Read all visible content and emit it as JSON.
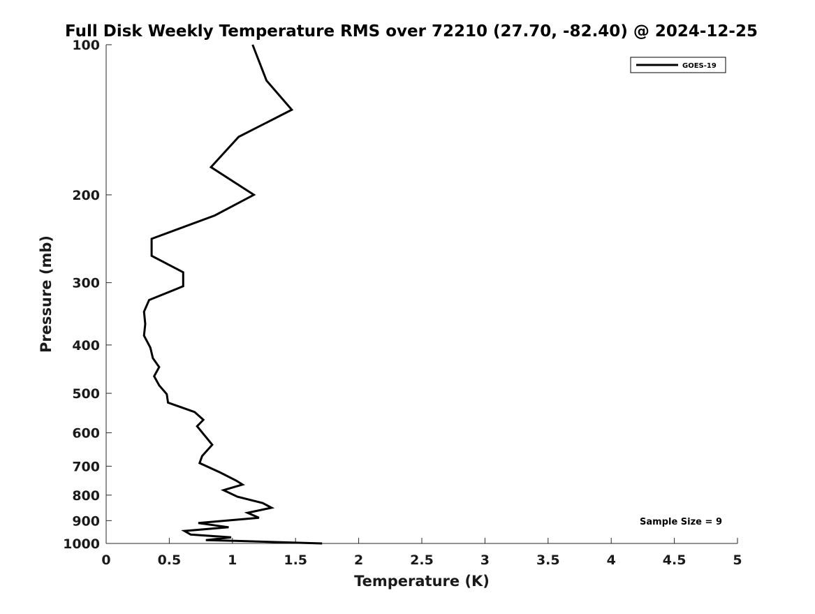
{
  "chart_data": {
    "type": "line",
    "title": "Full Disk Weekly Temperature RMS over 72210 (27.70, -82.40) @ 2024-12-25",
    "xlabel": "Temperature (K)",
    "ylabel": "Pressure (mb)",
    "xlim": [
      0,
      5
    ],
    "ylim": [
      1000,
      100
    ],
    "yscale": "log",
    "xticks": [
      "0",
      "0.5",
      "1",
      "1.5",
      "2",
      "2.5",
      "3",
      "3.5",
      "4",
      "4.5",
      "5"
    ],
    "yticks": [
      "100",
      "200",
      "300",
      "400",
      "500",
      "600",
      "700",
      "800",
      "900",
      "1000"
    ],
    "grid": false,
    "legend_position": "top-right",
    "annotation": "Sample Size = 9",
    "series": [
      {
        "name": "GOES-19",
        "color": "#000000",
        "points": [
          [
            1.16,
            100
          ],
          [
            1.27,
            118
          ],
          [
            1.47,
            135
          ],
          [
            1.05,
            153
          ],
          [
            0.83,
            176
          ],
          [
            1.17,
            200
          ],
          [
            0.86,
            220
          ],
          [
            0.36,
            245
          ],
          [
            0.36,
            265
          ],
          [
            0.61,
            286
          ],
          [
            0.61,
            305
          ],
          [
            0.34,
            325
          ],
          [
            0.3,
            343
          ],
          [
            0.31,
            363
          ],
          [
            0.3,
            383
          ],
          [
            0.35,
            405
          ],
          [
            0.37,
            425
          ],
          [
            0.42,
            443
          ],
          [
            0.38,
            462
          ],
          [
            0.42,
            482
          ],
          [
            0.48,
            502
          ],
          [
            0.49,
            522
          ],
          [
            0.7,
            545
          ],
          [
            0.77,
            565
          ],
          [
            0.72,
            582
          ],
          [
            0.84,
            634
          ],
          [
            0.76,
            668
          ],
          [
            0.74,
            690
          ],
          [
            0.9,
            720
          ],
          [
            1.03,
            748
          ],
          [
            1.08,
            762
          ],
          [
            0.93,
            782
          ],
          [
            1.04,
            806
          ],
          [
            1.24,
            830
          ],
          [
            1.31,
            848
          ],
          [
            1.12,
            868
          ],
          [
            1.21,
            888
          ],
          [
            0.73,
            910
          ],
          [
            0.97,
            928
          ],
          [
            0.62,
            944
          ],
          [
            0.67,
            960
          ],
          [
            0.99,
            972
          ],
          [
            0.79,
            985
          ],
          [
            1.02,
            988
          ],
          [
            1.71,
            1000
          ]
        ]
      }
    ]
  }
}
